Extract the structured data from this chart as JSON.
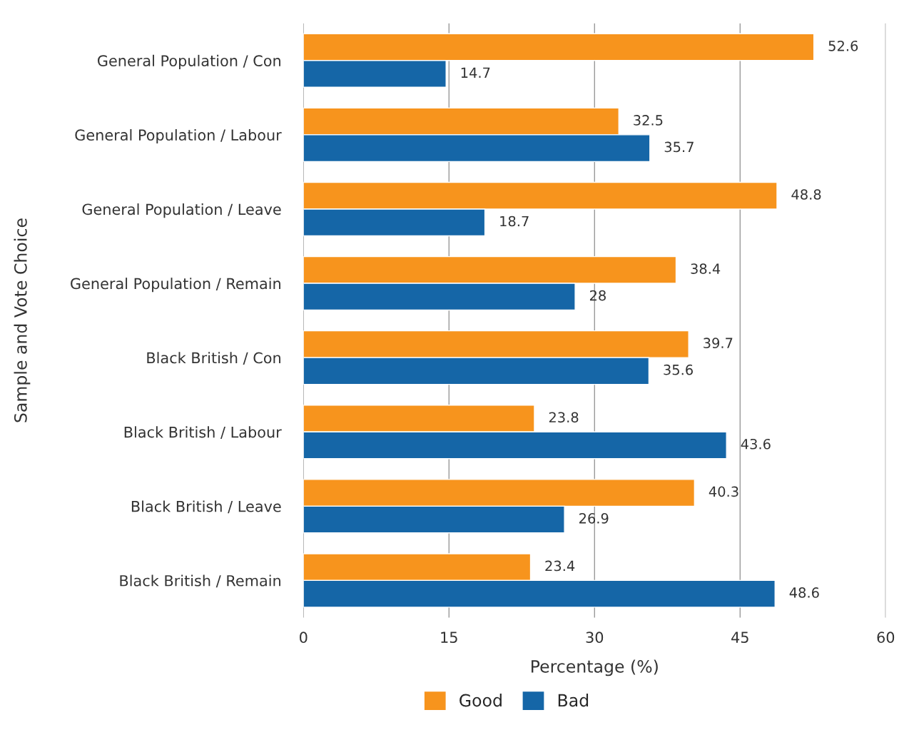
{
  "chart_data": {
    "type": "bar",
    "orientation": "horizontal",
    "xlabel": "Percentage (%)",
    "ylabel": "Sample and Vote Choice",
    "categories": [
      "General Population / Con",
      "General Population / Labour",
      "General Population / Leave",
      "General Population / Remain",
      "Black British / Con",
      "Black British / Labour",
      "Black British / Leave",
      "Black British / Remain"
    ],
    "series": [
      {
        "name": "Good",
        "color": "#f7941d",
        "values": [
          52.6,
          32.5,
          48.8,
          38.4,
          39.7,
          23.8,
          40.3,
          23.4
        ]
      },
      {
        "name": "Bad",
        "color": "#1566a7",
        "values": [
          14.7,
          35.7,
          18.7,
          28,
          35.6,
          43.6,
          26.9,
          48.6
        ]
      }
    ],
    "xlim": [
      0,
      60
    ],
    "xticks": [
      0,
      15,
      30,
      45,
      60
    ],
    "grid": "x",
    "legend": "bottom",
    "data_labels": true
  }
}
